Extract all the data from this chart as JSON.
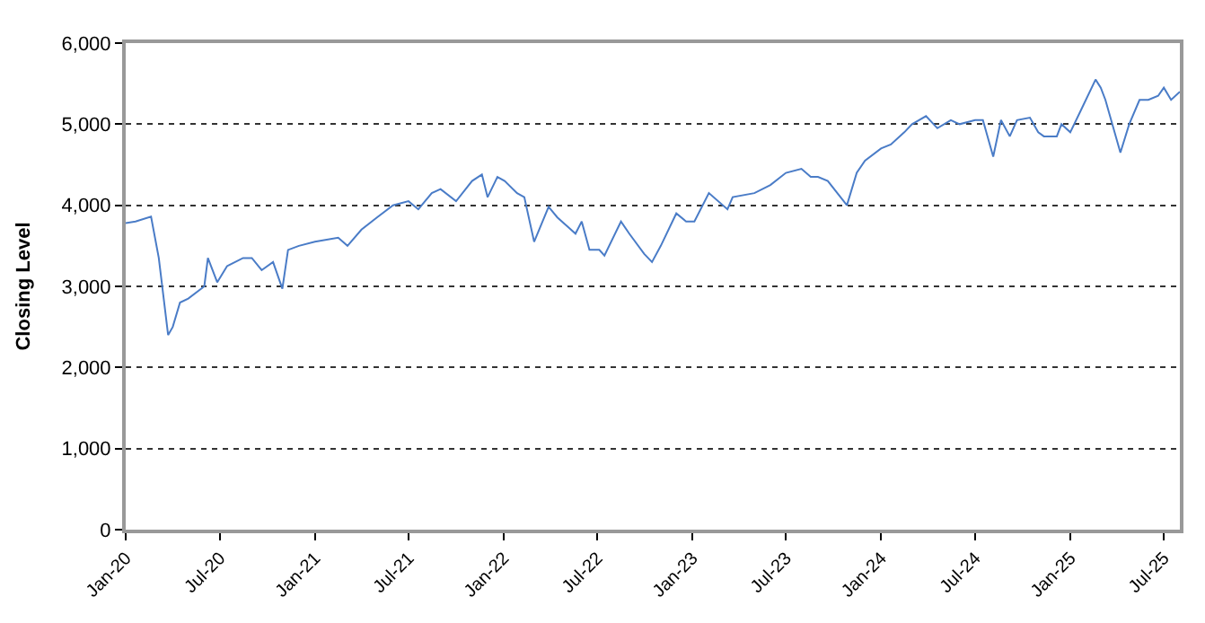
{
  "chart_data": {
    "type": "line",
    "ylabel": "Closing Level",
    "xlim": [
      "2020-01-01",
      "2025-08-01"
    ],
    "xticks": [
      {
        "value": "2020-01-01",
        "label": "Jan-20"
      },
      {
        "value": "2020-07-01",
        "label": "Jul-20"
      },
      {
        "value": "2021-01-01",
        "label": "Jan-21"
      },
      {
        "value": "2021-07-01",
        "label": "Jul-21"
      },
      {
        "value": "2022-01-01",
        "label": "Jan-22"
      },
      {
        "value": "2022-07-01",
        "label": "Jul-22"
      },
      {
        "value": "2023-01-01",
        "label": "Jan-23"
      },
      {
        "value": "2023-07-01",
        "label": "Jul-23"
      },
      {
        "value": "2024-01-01",
        "label": "Jan-24"
      },
      {
        "value": "2024-07-01",
        "label": "Jul-24"
      },
      {
        "value": "2025-01-01",
        "label": "Jan-25"
      },
      {
        "value": "2025-07-01",
        "label": "Jul-25"
      }
    ],
    "ylim": [
      0,
      6000
    ],
    "yticks": [
      {
        "value": 0,
        "label": "0"
      },
      {
        "value": 1000,
        "label": "1,000"
      },
      {
        "value": 2000,
        "label": "2,000"
      },
      {
        "value": 3000,
        "label": "3,000"
      },
      {
        "value": 4000,
        "label": "4,000"
      },
      {
        "value": 5000,
        "label": "5,000"
      },
      {
        "value": 6000,
        "label": "6,000"
      }
    ],
    "grid": "y",
    "marker": "none",
    "line_style": "solid",
    "x": [
      "2020-01-01",
      "2020-01-20",
      "2020-02-19",
      "2020-03-05",
      "2020-03-23",
      "2020-04-01",
      "2020-04-15",
      "2020-05-01",
      "2020-06-01",
      "2020-06-08",
      "2020-06-26",
      "2020-07-15",
      "2020-08-15",
      "2020-09-01",
      "2020-09-20",
      "2020-10-12",
      "2020-10-30",
      "2020-11-10",
      "2020-12-01",
      "2021-01-01",
      "2021-02-15",
      "2021-03-05",
      "2021-04-01",
      "2021-05-01",
      "2021-06-01",
      "2021-07-01",
      "2021-07-20",
      "2021-08-15",
      "2021-09-01",
      "2021-10-01",
      "2021-11-01",
      "2021-11-20",
      "2021-12-01",
      "2021-12-20",
      "2022-01-03",
      "2022-01-27",
      "2022-02-10",
      "2022-03-01",
      "2022-03-29",
      "2022-04-15",
      "2022-05-20",
      "2022-06-01",
      "2022-06-16",
      "2022-07-05",
      "2022-07-15",
      "2022-08-16",
      "2022-09-01",
      "2022-09-30",
      "2022-10-15",
      "2022-11-01",
      "2022-12-01",
      "2022-12-20",
      "2023-01-05",
      "2023-02-02",
      "2023-03-10",
      "2023-03-20",
      "2023-05-01",
      "2023-06-01",
      "2023-07-01",
      "2023-07-31",
      "2023-08-18",
      "2023-09-01",
      "2023-09-20",
      "2023-10-27",
      "2023-11-15",
      "2023-12-01",
      "2024-01-01",
      "2024-01-20",
      "2024-02-15",
      "2024-03-01",
      "2024-03-28",
      "2024-04-19",
      "2024-05-15",
      "2024-06-01",
      "2024-07-01",
      "2024-07-16",
      "2024-08-05",
      "2024-08-20",
      "2024-09-06",
      "2024-09-20",
      "2024-10-15",
      "2024-10-31",
      "2024-11-11",
      "2024-12-06",
      "2024-12-15",
      "2025-01-01",
      "2025-01-20",
      "2025-02-19",
      "2025-03-01",
      "2025-03-10",
      "2025-04-08",
      "2025-04-25",
      "2025-05-15",
      "2025-06-01",
      "2025-06-20",
      "2025-07-01",
      "2025-07-15",
      "2025-08-01"
    ],
    "series": [
      {
        "color": "#4a7cc7",
        "values": [
          3780,
          3800,
          3860,
          3350,
          2400,
          2500,
          2800,
          2850,
          3000,
          3350,
          3050,
          3250,
          3350,
          3350,
          3200,
          3300,
          2970,
          3450,
          3500,
          3550,
          3600,
          3500,
          3700,
          3850,
          4000,
          4050,
          3950,
          4150,
          4200,
          4050,
          4300,
          4380,
          4100,
          4350,
          4300,
          4150,
          4100,
          3550,
          3980,
          3850,
          3650,
          3800,
          3450,
          3450,
          3380,
          3800,
          3650,
          3400,
          3300,
          3500,
          3900,
          3800,
          3800,
          4150,
          3950,
          4100,
          4150,
          4250,
          4400,
          4450,
          4350,
          4350,
          4300,
          4000,
          4400,
          4550,
          4700,
          4750,
          4900,
          5000,
          5100,
          4950,
          5050,
          5000,
          5050,
          5050,
          4600,
          5050,
          4850,
          5050,
          5080,
          4900,
          4850,
          4850,
          5000,
          4900,
          5150,
          5550,
          5450,
          5300,
          4650,
          5000,
          5300,
          5300,
          5350,
          5450,
          5300,
          5400
        ]
      }
    ]
  }
}
